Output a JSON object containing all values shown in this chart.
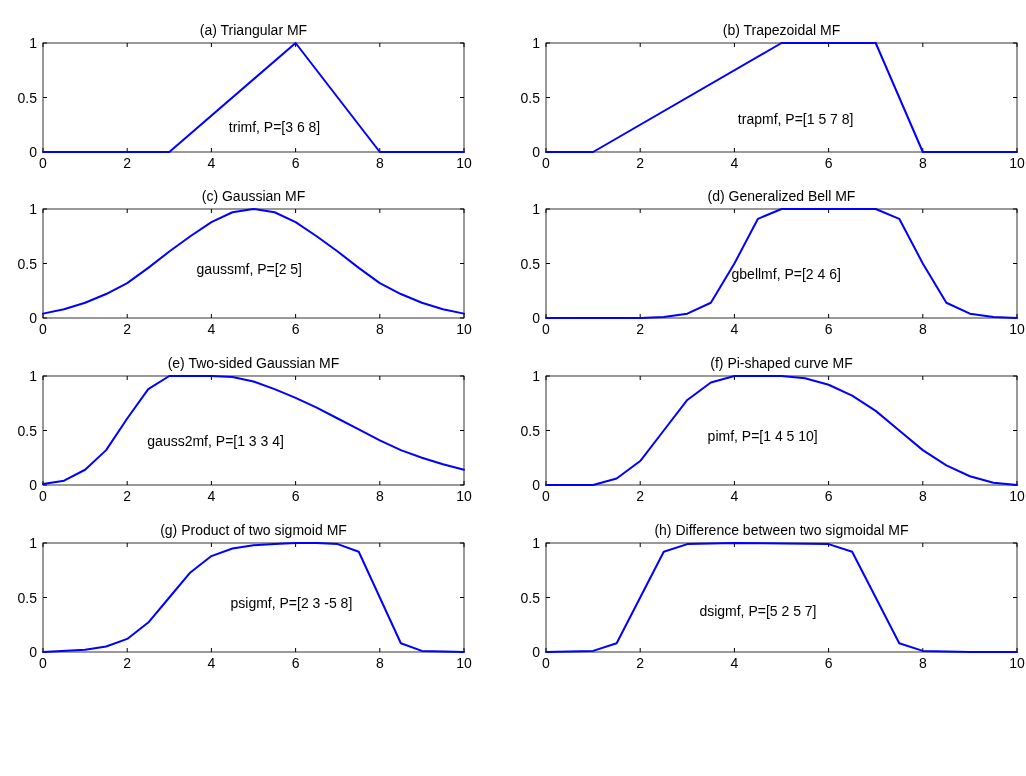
{
  "chart_data": [
    {
      "type": "line",
      "title": "(a) Triangular MF",
      "x": [
        0,
        3,
        6,
        8,
        10
      ],
      "series": [
        {
          "color": "#0000ff",
          "values": [
            0,
            0,
            1,
            0,
            0
          ]
        }
      ],
      "xlim": [
        0,
        10
      ],
      "ylim": [
        0,
        1
      ],
      "xticks": [
        0,
        2,
        4,
        6,
        8,
        10
      ],
      "yticks": [
        0,
        0.5,
        1
      ],
      "annotations": [
        "trimf, P=[3 6 8]"
      ]
    },
    {
      "type": "line",
      "title": "(b) Trapezoidal MF",
      "x": [
        0,
        1,
        5,
        7,
        8,
        10
      ],
      "series": [
        {
          "color": "#0000ff",
          "values": [
            0,
            0,
            1,
            1,
            0,
            0
          ]
        }
      ],
      "xlim": [
        0,
        10
      ],
      "ylim": [
        0,
        1
      ],
      "xticks": [
        0,
        2,
        4,
        6,
        8,
        10
      ],
      "yticks": [
        0,
        0.5,
        1
      ],
      "annotations": [
        "trapmf, P=[1 5 7 8]"
      ]
    },
    {
      "type": "line",
      "title": "(c) Gaussian MF",
      "x": [
        0,
        0.5,
        1,
        1.5,
        2,
        2.5,
        3,
        3.5,
        4,
        4.5,
        5,
        5.5,
        6,
        6.5,
        7,
        7.5,
        8,
        8.5,
        9,
        9.5,
        10
      ],
      "series": [
        {
          "color": "#0000ff",
          "values": [
            0.04,
            0.08,
            0.14,
            0.22,
            0.32,
            0.46,
            0.61,
            0.75,
            0.88,
            0.97,
            1,
            0.97,
            0.88,
            0.75,
            0.61,
            0.46,
            0.32,
            0.22,
            0.14,
            0.08,
            0.04
          ]
        }
      ],
      "xlim": [
        0,
        10
      ],
      "ylim": [
        0,
        1
      ],
      "xticks": [
        0,
        2,
        4,
        6,
        8,
        10
      ],
      "yticks": [
        0,
        0.5,
        1
      ],
      "annotations": [
        "gaussmf, P=[2 5]"
      ]
    },
    {
      "type": "line",
      "title": "(d) Generalized Bell MF",
      "x": [
        0,
        1,
        2,
        2.5,
        3,
        3.5,
        4,
        4.5,
        5,
        5.5,
        6,
        6.5,
        7,
        7.5,
        8,
        8.5,
        9,
        9.5,
        10
      ],
      "series": [
        {
          "color": "#0000ff",
          "values": [
            0,
            0,
            0,
            0.01,
            0.04,
            0.14,
            0.5,
            0.91,
            1,
            1,
            1,
            1,
            1,
            0.91,
            0.5,
            0.14,
            0.04,
            0.01,
            0
          ]
        }
      ],
      "xlim": [
        0,
        10
      ],
      "ylim": [
        0,
        1
      ],
      "xticks": [
        0,
        2,
        4,
        6,
        8,
        10
      ],
      "yticks": [
        0,
        0.5,
        1
      ],
      "annotations": [
        "gbellmf, P=[2 4 6]"
      ]
    },
    {
      "type": "line",
      "title": "(e) Two-sided Gaussian MF",
      "x": [
        0,
        0.5,
        1,
        1.5,
        2,
        2.5,
        3,
        4,
        4.5,
        5,
        5.5,
        6,
        6.5,
        7,
        7.5,
        8,
        8.5,
        9,
        9.5,
        10
      ],
      "series": [
        {
          "color": "#0000ff",
          "values": [
            0.01,
            0.04,
            0.14,
            0.32,
            0.61,
            0.88,
            1,
            1,
            0.99,
            0.95,
            0.88,
            0.8,
            0.71,
            0.61,
            0.51,
            0.41,
            0.32,
            0.25,
            0.19,
            0.14
          ]
        }
      ],
      "xlim": [
        0,
        10
      ],
      "ylim": [
        0,
        1
      ],
      "xticks": [
        0,
        2,
        4,
        6,
        8,
        10
      ],
      "yticks": [
        0,
        0.5,
        1
      ],
      "annotations": [
        "gauss2mf, P=[1 3 3 4]"
      ]
    },
    {
      "type": "line",
      "title": "(f) Pi-shaped curve MF",
      "x": [
        0,
        1,
        1.5,
        2,
        2.5,
        3,
        3.5,
        4,
        5,
        5.5,
        6,
        6.5,
        7,
        7.5,
        8,
        8.5,
        9,
        9.5,
        10
      ],
      "series": [
        {
          "color": "#0000ff",
          "values": [
            0,
            0,
            0.06,
            0.22,
            0.5,
            0.78,
            0.94,
            1,
            1,
            0.98,
            0.92,
            0.82,
            0.68,
            0.5,
            0.32,
            0.18,
            0.08,
            0.02,
            0
          ]
        }
      ],
      "xlim": [
        0,
        10
      ],
      "ylim": [
        0,
        1
      ],
      "xticks": [
        0,
        2,
        4,
        6,
        8,
        10
      ],
      "yticks": [
        0,
        0.5,
        1
      ],
      "annotations": [
        "pimf, P=[1 4 5 10]"
      ]
    },
    {
      "type": "line",
      "title": "(g) Product of two sigmoid MF",
      "x": [
        0,
        1,
        1.5,
        2,
        2.5,
        3,
        3.5,
        4,
        4.5,
        5,
        5.5,
        6,
        6.5,
        7,
        7.5,
        8,
        8.5,
        9,
        10
      ],
      "series": [
        {
          "color": "#0000ff",
          "values": [
            0,
            0.02,
            0.05,
            0.12,
            0.27,
            0.5,
            0.73,
            0.88,
            0.95,
            0.98,
            0.99,
            1,
            1,
            0.99,
            0.92,
            0.5,
            0.08,
            0.01,
            0
          ]
        }
      ],
      "xlim": [
        0,
        10
      ],
      "ylim": [
        0,
        1
      ],
      "xticks": [
        0,
        2,
        4,
        6,
        8,
        10
      ],
      "yticks": [
        0,
        0.5,
        1
      ],
      "annotations": [
        "psigmf, P=[2 3 -5 8]"
      ]
    },
    {
      "type": "line",
      "title": "(h) Difference between two sigmoidal MF",
      "x": [
        0,
        1,
        1.5,
        2,
        2.5,
        3,
        4,
        6,
        6.5,
        7,
        7.5,
        8,
        9,
        10
      ],
      "series": [
        {
          "color": "#0000ff",
          "values": [
            0,
            0.01,
            0.08,
            0.5,
            0.92,
            0.99,
            1,
            0.99,
            0.92,
            0.5,
            0.08,
            0.01,
            0,
            0
          ]
        }
      ],
      "xlim": [
        0,
        10
      ],
      "ylim": [
        0,
        1
      ],
      "xticks": [
        0,
        2,
        4,
        6,
        8,
        10
      ],
      "yticks": [
        0,
        0.5,
        1
      ],
      "annotations": [
        "dsigmf, P=[5 2 5 7]"
      ]
    }
  ]
}
